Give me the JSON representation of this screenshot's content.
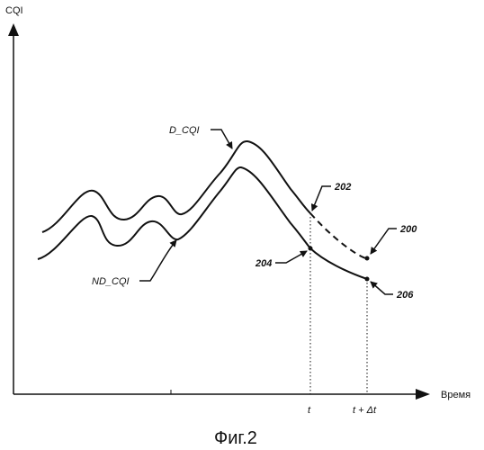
{
  "axes": {
    "y_label": "CQI",
    "x_label": "Время"
  },
  "curves": {
    "d_cqi_label": "D_CQI",
    "nd_cqi_label": "ND_CQI"
  },
  "reference_labels": {
    "r200": "200",
    "r202": "202",
    "r204": "204",
    "r206": "206"
  },
  "ticks": {
    "t": "t",
    "t_plus_dt": "t + Δt"
  },
  "caption": "Фиг.2"
}
